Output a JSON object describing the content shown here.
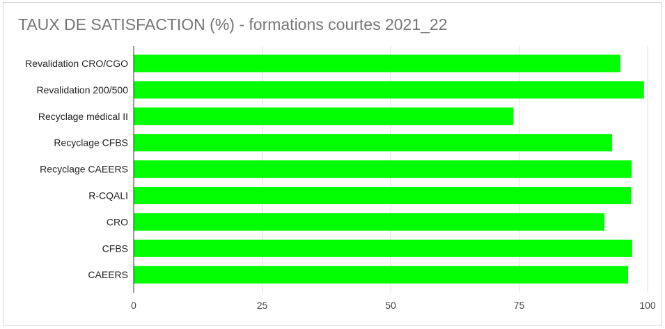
{
  "chart_data": {
    "type": "bar",
    "orientation": "horizontal",
    "title": "TAUX DE SATISFACTION (%) - formations courtes 2021_22",
    "categories": [
      "Revalidation CRO/CGO",
      "Revalidation 200/500",
      "Recyclage médical II",
      "Recyclage CFBS",
      "Recyclage CAEERS",
      "R-CQALI",
      "CRO",
      "CFBS",
      "CAEERS"
    ],
    "values": [
      94.7,
      99.3,
      73.9,
      93.1,
      96.9,
      96.8,
      91.6,
      97.0,
      96.2
    ],
    "xlim": [
      0,
      100
    ],
    "xticks": [
      "0",
      "25",
      "50",
      "75",
      "100"
    ],
    "grid": true,
    "legend": "none",
    "bar_color": "#00ff00"
  }
}
